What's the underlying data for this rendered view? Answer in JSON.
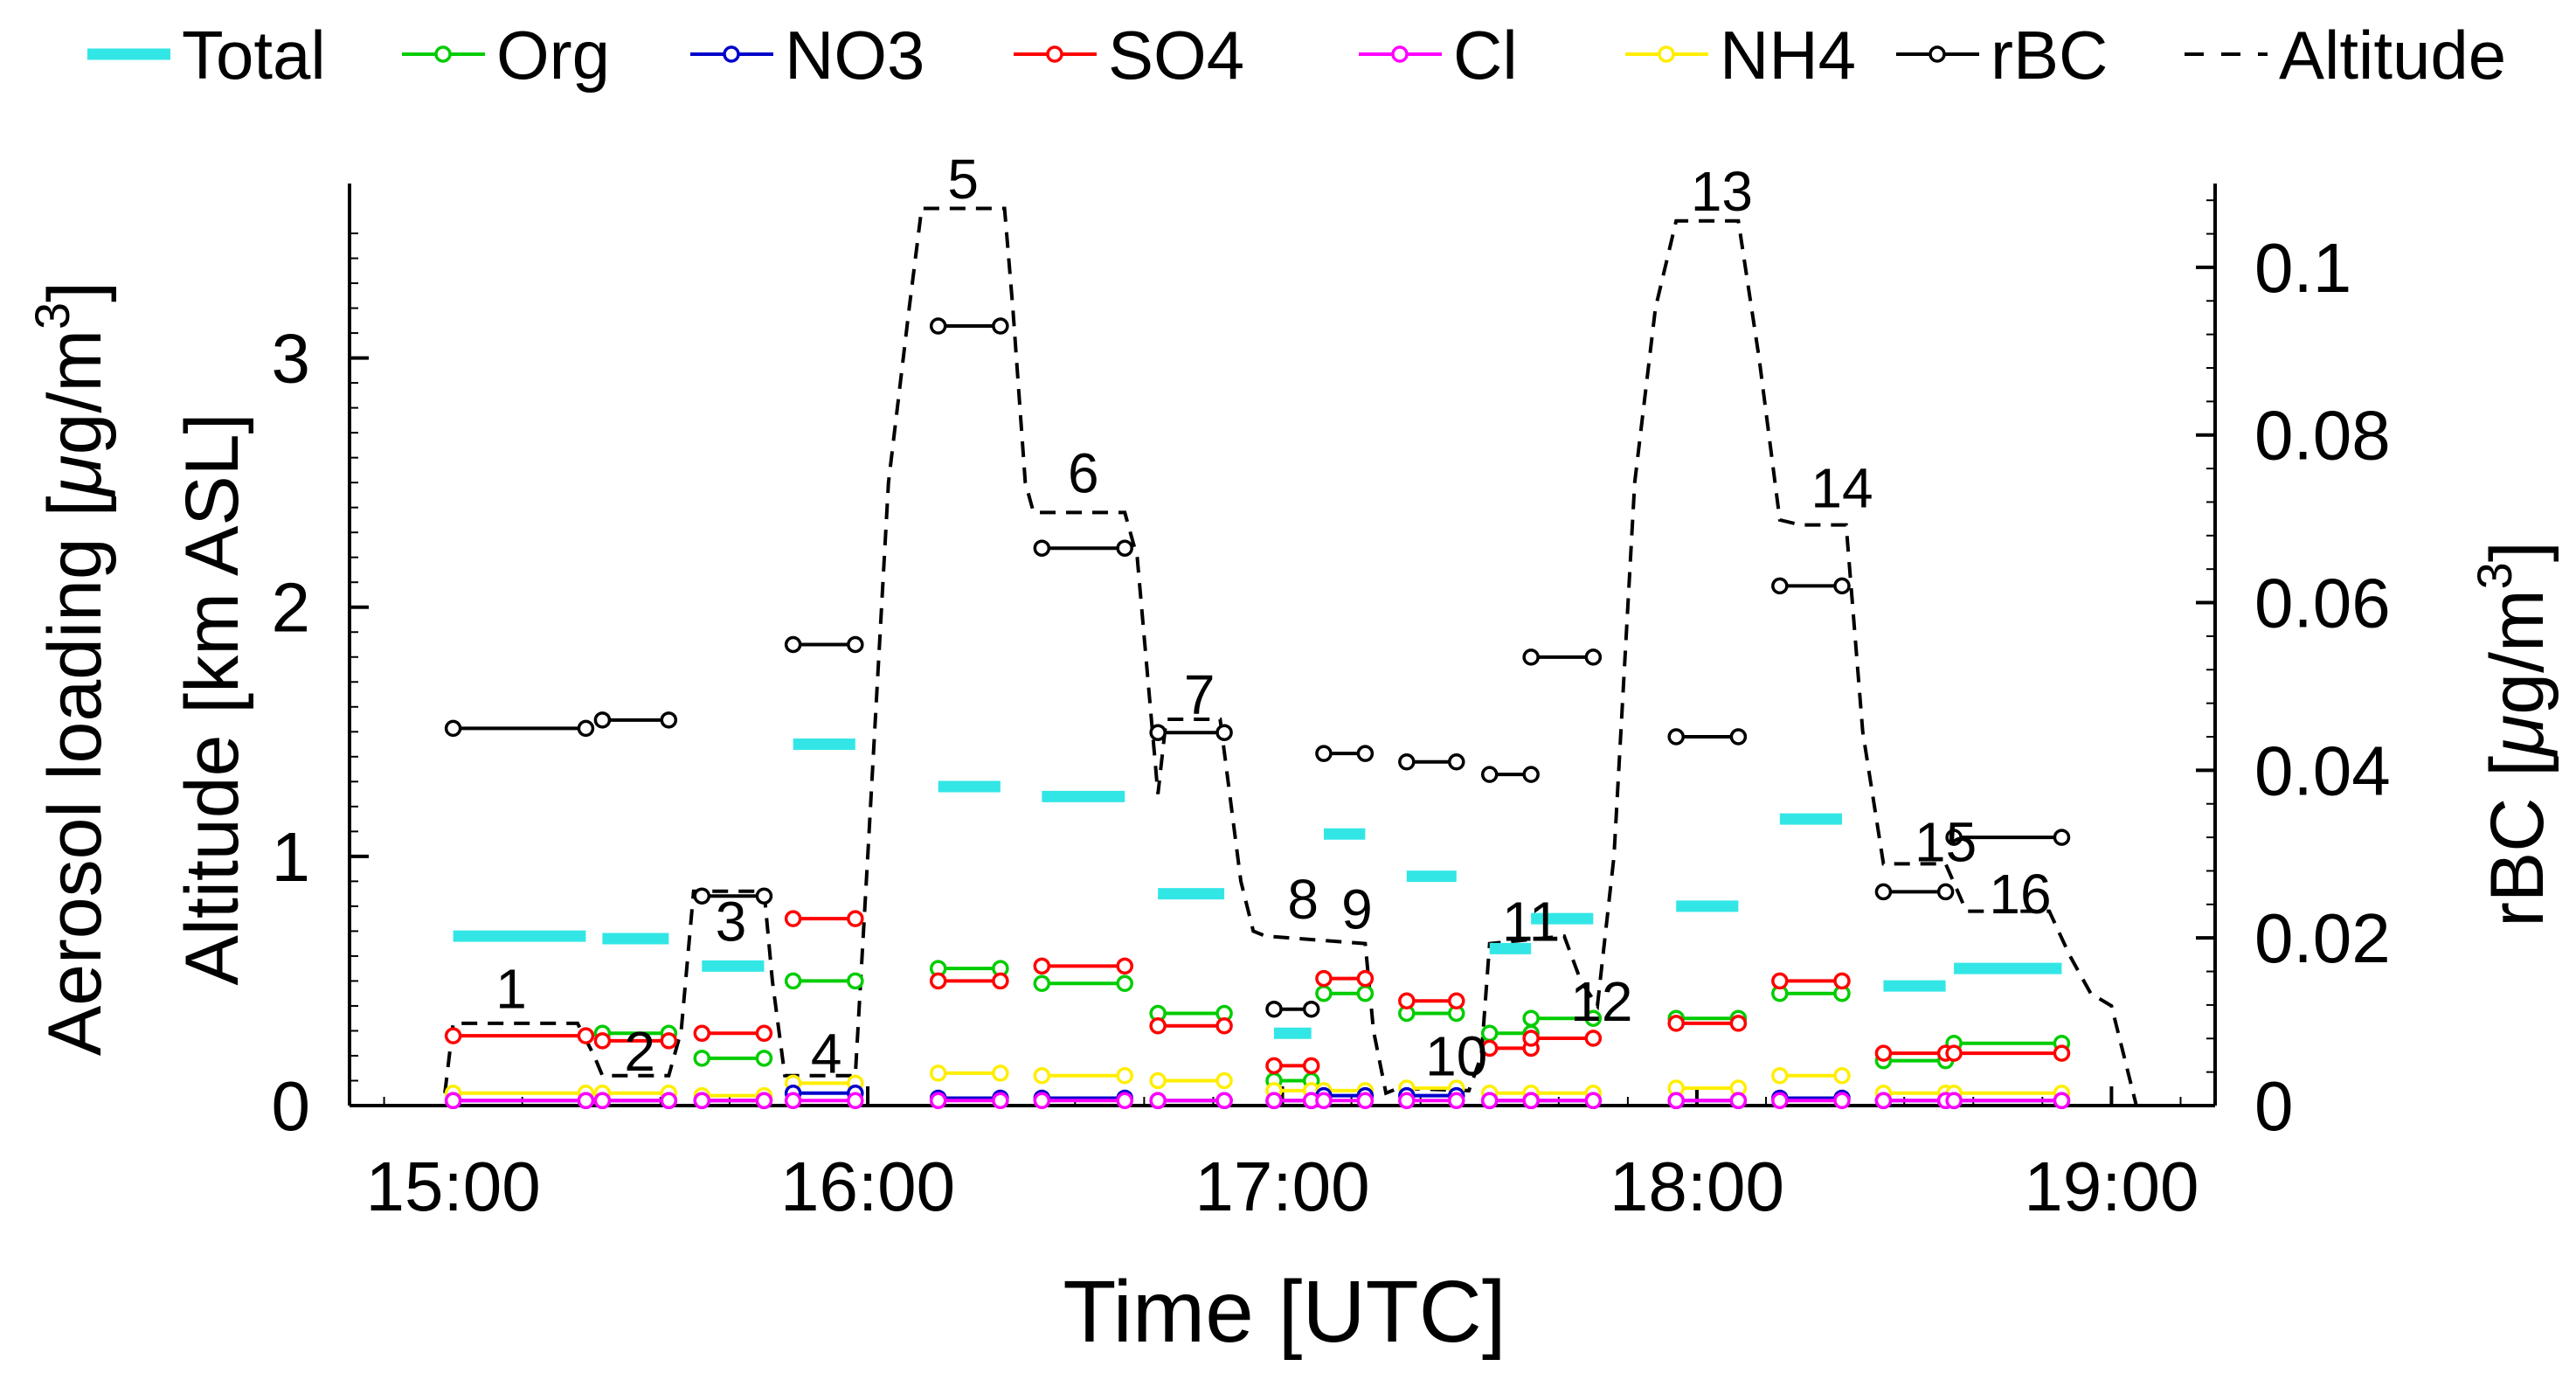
{
  "chart_data": {
    "type": "line",
    "title": "",
    "xlabel": "Time [UTC]",
    "ylabel_left_line1": "Aerosol loading [",
    "ylabel_left_mu": "μ",
    "ylabel_left_unit": "g/m",
    "ylabel_left_exp": "3",
    "ylabel_left_close": "]",
    "ylabel_left_line2": "Altitude [km ASL]",
    "ylabel_right": "rBC [",
    "ylabel_right_mu": "μ",
    "ylabel_right_unit": "g/m",
    "ylabel_right_exp": "3",
    "ylabel_right_close": "]",
    "xlim_hours": [
      14.75,
      19.25
    ],
    "ylim_left": [
      0,
      3.7
    ],
    "ylim_right": [
      0,
      0.11
    ],
    "x_ticks": [
      {
        "v": 15,
        "label": "15:00"
      },
      {
        "v": 16,
        "label": "16:00"
      },
      {
        "v": 17,
        "label": "17:00"
      },
      {
        "v": 18,
        "label": "18:00"
      },
      {
        "v": 19,
        "label": "19:00"
      }
    ],
    "y_ticks_left": [
      {
        "v": 0,
        "label": "0"
      },
      {
        "v": 1,
        "label": "1"
      },
      {
        "v": 2,
        "label": "2"
      },
      {
        "v": 3,
        "label": "3"
      }
    ],
    "y_ticks_right": [
      {
        "v": 0,
        "label": "0"
      },
      {
        "v": 0.02,
        "label": "0.02"
      },
      {
        "v": 0.04,
        "label": "0.04"
      },
      {
        "v": 0.06,
        "label": "0.06"
      },
      {
        "v": 0.08,
        "label": "0.08"
      },
      {
        "v": 0.1,
        "label": "0.1"
      }
    ],
    "legend": {
      "placement": "top",
      "entries": [
        {
          "name": "Total",
          "color": "#33e6e6",
          "style": "thick"
        },
        {
          "name": "Org",
          "color": "#00cc00",
          "style": "marker"
        },
        {
          "name": "NO3",
          "color": "#0000cc",
          "style": "marker"
        },
        {
          "name": "SO4",
          "color": "#ff0000",
          "style": "marker"
        },
        {
          "name": "Cl",
          "color": "#ff00ff",
          "style": "marker"
        },
        {
          "name": "NH4",
          "color": "#ffee00",
          "style": "marker"
        },
        {
          "name": "rBC",
          "color": "#000000",
          "style": "marker"
        },
        {
          "name": "Altitude",
          "color": "#000000",
          "style": "dashed"
        }
      ]
    },
    "series": [
      {
        "name": "Total",
        "color": "#33e6e6",
        "axis": "left",
        "type": "segments",
        "segments": [
          [
            15.0,
            15.32,
            0.68
          ],
          [
            15.36,
            15.52,
            0.67
          ],
          [
            15.6,
            15.75,
            0.56
          ],
          [
            15.82,
            15.97,
            1.45
          ],
          [
            16.17,
            16.32,
            1.28
          ],
          [
            16.42,
            16.62,
            1.24
          ],
          [
            16.7,
            16.86,
            0.85
          ],
          [
            16.98,
            17.07,
            0.29
          ],
          [
            17.1,
            17.2,
            1.09
          ],
          [
            17.3,
            17.42,
            0.92
          ],
          [
            17.5,
            17.6,
            0.63
          ],
          [
            17.6,
            17.75,
            0.75
          ],
          [
            17.95,
            18.1,
            0.8
          ],
          [
            18.2,
            18.35,
            1.15
          ],
          [
            18.45,
            18.6,
            0.48
          ],
          [
            18.62,
            18.88,
            0.55
          ]
        ]
      },
      {
        "name": "Org",
        "color": "#00cc00",
        "axis": "left",
        "type": "segments",
        "segments": [
          [
            15.36,
            15.52,
            0.29
          ],
          [
            15.6,
            15.75,
            0.19
          ],
          [
            15.82,
            15.97,
            0.5
          ],
          [
            16.17,
            16.32,
            0.55
          ],
          [
            16.42,
            16.62,
            0.49
          ],
          [
            16.7,
            16.86,
            0.37
          ],
          [
            16.98,
            17.07,
            0.1
          ],
          [
            17.1,
            17.2,
            0.45
          ],
          [
            17.3,
            17.42,
            0.37
          ],
          [
            17.5,
            17.6,
            0.29
          ],
          [
            17.6,
            17.75,
            0.35
          ],
          [
            17.95,
            18.1,
            0.35
          ],
          [
            18.2,
            18.35,
            0.45
          ],
          [
            18.45,
            18.6,
            0.18
          ],
          [
            18.62,
            18.88,
            0.25
          ]
        ]
      },
      {
        "name": "SO4",
        "color": "#ff0000",
        "axis": "left",
        "type": "segments",
        "segments": [
          [
            15.0,
            15.32,
            0.28
          ],
          [
            15.36,
            15.52,
            0.26
          ],
          [
            15.6,
            15.75,
            0.29
          ],
          [
            15.82,
            15.97,
            0.75
          ],
          [
            16.17,
            16.32,
            0.5
          ],
          [
            16.42,
            16.62,
            0.56
          ],
          [
            16.7,
            16.86,
            0.32
          ],
          [
            16.98,
            17.07,
            0.16
          ],
          [
            17.1,
            17.2,
            0.51
          ],
          [
            17.3,
            17.42,
            0.42
          ],
          [
            17.5,
            17.6,
            0.23
          ],
          [
            17.6,
            17.75,
            0.27
          ],
          [
            17.95,
            18.1,
            0.33
          ],
          [
            18.2,
            18.35,
            0.5
          ],
          [
            18.45,
            18.6,
            0.21
          ],
          [
            18.62,
            18.88,
            0.21
          ]
        ]
      },
      {
        "name": "NH4",
        "color": "#ffee00",
        "axis": "left",
        "type": "segments",
        "segments": [
          [
            15.0,
            15.32,
            0.05
          ],
          [
            15.36,
            15.52,
            0.05
          ],
          [
            15.6,
            15.75,
            0.04
          ],
          [
            15.82,
            15.97,
            0.09
          ],
          [
            16.17,
            16.32,
            0.13
          ],
          [
            16.42,
            16.62,
            0.12
          ],
          [
            16.7,
            16.86,
            0.1
          ],
          [
            16.98,
            17.07,
            0.06
          ],
          [
            17.1,
            17.2,
            0.06
          ],
          [
            17.3,
            17.42,
            0.07
          ],
          [
            17.5,
            17.6,
            0.05
          ],
          [
            17.6,
            17.75,
            0.05
          ],
          [
            17.95,
            18.1,
            0.07
          ],
          [
            18.2,
            18.35,
            0.12
          ],
          [
            18.45,
            18.6,
            0.05
          ],
          [
            18.62,
            18.88,
            0.05
          ]
        ]
      },
      {
        "name": "NO3",
        "color": "#0000cc",
        "axis": "left",
        "type": "segments",
        "segments": [
          [
            15.0,
            15.32,
            0.02
          ],
          [
            15.36,
            15.52,
            0.02
          ],
          [
            15.6,
            15.75,
            0.02
          ],
          [
            15.82,
            15.97,
            0.05
          ],
          [
            16.17,
            16.32,
            0.03
          ],
          [
            16.42,
            16.62,
            0.03
          ],
          [
            16.7,
            16.86,
            0.02
          ],
          [
            16.98,
            17.07,
            0.02
          ],
          [
            17.1,
            17.2,
            0.04
          ],
          [
            17.3,
            17.42,
            0.04
          ],
          [
            17.5,
            17.6,
            0.02
          ],
          [
            17.6,
            17.75,
            0.02
          ],
          [
            17.95,
            18.1,
            0.02
          ],
          [
            18.2,
            18.35,
            0.03
          ],
          [
            18.45,
            18.6,
            0.02
          ],
          [
            18.62,
            18.88,
            0.02
          ]
        ]
      },
      {
        "name": "Cl",
        "color": "#ff00ff",
        "axis": "left",
        "type": "segments",
        "segments": [
          [
            15.0,
            15.32,
            0.02
          ],
          [
            15.36,
            15.52,
            0.02
          ],
          [
            15.6,
            15.75,
            0.02
          ],
          [
            15.82,
            15.97,
            0.02
          ],
          [
            16.17,
            16.32,
            0.02
          ],
          [
            16.42,
            16.62,
            0.02
          ],
          [
            16.7,
            16.86,
            0.02
          ],
          [
            16.98,
            17.07,
            0.02
          ],
          [
            17.1,
            17.2,
            0.02
          ],
          [
            17.3,
            17.42,
            0.02
          ],
          [
            17.5,
            17.6,
            0.02
          ],
          [
            17.6,
            17.75,
            0.02
          ],
          [
            17.95,
            18.1,
            0.02
          ],
          [
            18.2,
            18.35,
            0.02
          ],
          [
            18.45,
            18.6,
            0.02
          ],
          [
            18.62,
            18.88,
            0.02
          ]
        ]
      },
      {
        "name": "rBC",
        "color": "#000000",
        "axis": "right",
        "type": "segments",
        "segments": [
          [
            15.0,
            15.32,
            0.045
          ],
          [
            15.36,
            15.52,
            0.046
          ],
          [
            15.6,
            15.75,
            0.025
          ],
          [
            15.82,
            15.97,
            0.055
          ],
          [
            16.17,
            16.32,
            0.093
          ],
          [
            16.42,
            16.62,
            0.0665
          ],
          [
            16.7,
            16.86,
            0.0445
          ],
          [
            16.98,
            17.07,
            0.0115
          ],
          [
            17.1,
            17.2,
            0.042
          ],
          [
            17.3,
            17.42,
            0.041
          ],
          [
            17.5,
            17.6,
            0.0395
          ],
          [
            17.6,
            17.75,
            0.0535
          ],
          [
            17.95,
            18.1,
            0.044
          ],
          [
            18.2,
            18.35,
            0.062
          ],
          [
            18.45,
            18.6,
            0.0255
          ],
          [
            18.62,
            18.88,
            0.032
          ]
        ]
      },
      {
        "name": "Altitude",
        "color": "#000000",
        "axis": "left",
        "type": "dashed",
        "x": [
          14.98,
          15.0,
          15.3,
          15.34,
          15.36,
          15.52,
          15.55,
          15.58,
          15.75,
          15.77,
          15.8,
          15.97,
          16.0,
          16.05,
          16.1,
          16.13,
          16.33,
          16.35,
          16.38,
          16.4,
          16.62,
          16.65,
          16.7,
          16.72,
          16.85,
          16.9,
          16.93,
          16.96,
          17.2,
          17.22,
          17.25,
          17.28,
          17.45,
          17.48,
          17.5,
          17.68,
          17.72,
          17.76,
          17.8,
          17.85,
          17.9,
          17.95,
          18.1,
          18.15,
          18.2,
          18.25,
          18.36,
          18.4,
          18.45,
          18.6,
          18.65,
          18.85,
          18.9,
          18.95,
          19.0,
          19.06
        ],
        "y": [
          0.05,
          0.33,
          0.33,
          0.2,
          0.12,
          0.12,
          0.3,
          0.86,
          0.86,
          0.5,
          0.12,
          0.12,
          1.0,
          2.5,
          3.2,
          3.6,
          3.6,
          3.2,
          2.5,
          2.38,
          2.38,
          2.2,
          1.25,
          1.55,
          1.55,
          0.9,
          0.7,
          0.68,
          0.65,
          0.3,
          0.05,
          0.07,
          0.06,
          0.2,
          0.65,
          0.68,
          0.5,
          0.4,
          1.0,
          2.5,
          3.2,
          3.55,
          3.55,
          3.0,
          2.35,
          2.33,
          2.33,
          1.5,
          0.97,
          0.97,
          0.78,
          0.78,
          0.6,
          0.45,
          0.4,
          0.0
        ]
      },
      {
        "name": "Altitude labels",
        "type": "labels",
        "points": [
          [
            15.14,
            0.37,
            "1"
          ],
          [
            15.45,
            0.12,
            "2"
          ],
          [
            15.67,
            0.64,
            "3"
          ],
          [
            15.9,
            0.11,
            "4"
          ],
          [
            16.23,
            3.62,
            "5"
          ],
          [
            16.52,
            2.44,
            "6"
          ],
          [
            16.8,
            1.55,
            "7"
          ],
          [
            17.05,
            0.73,
            "8"
          ],
          [
            17.18,
            0.69,
            "9"
          ],
          [
            17.42,
            0.1,
            "10"
          ],
          [
            17.6,
            0.64,
            "11"
          ],
          [
            17.77,
            0.32,
            "12"
          ],
          [
            18.06,
            3.57,
            "13"
          ],
          [
            18.35,
            2.38,
            "14"
          ],
          [
            18.6,
            0.96,
            "15"
          ],
          [
            18.78,
            0.75,
            "16"
          ]
        ]
      }
    ]
  }
}
